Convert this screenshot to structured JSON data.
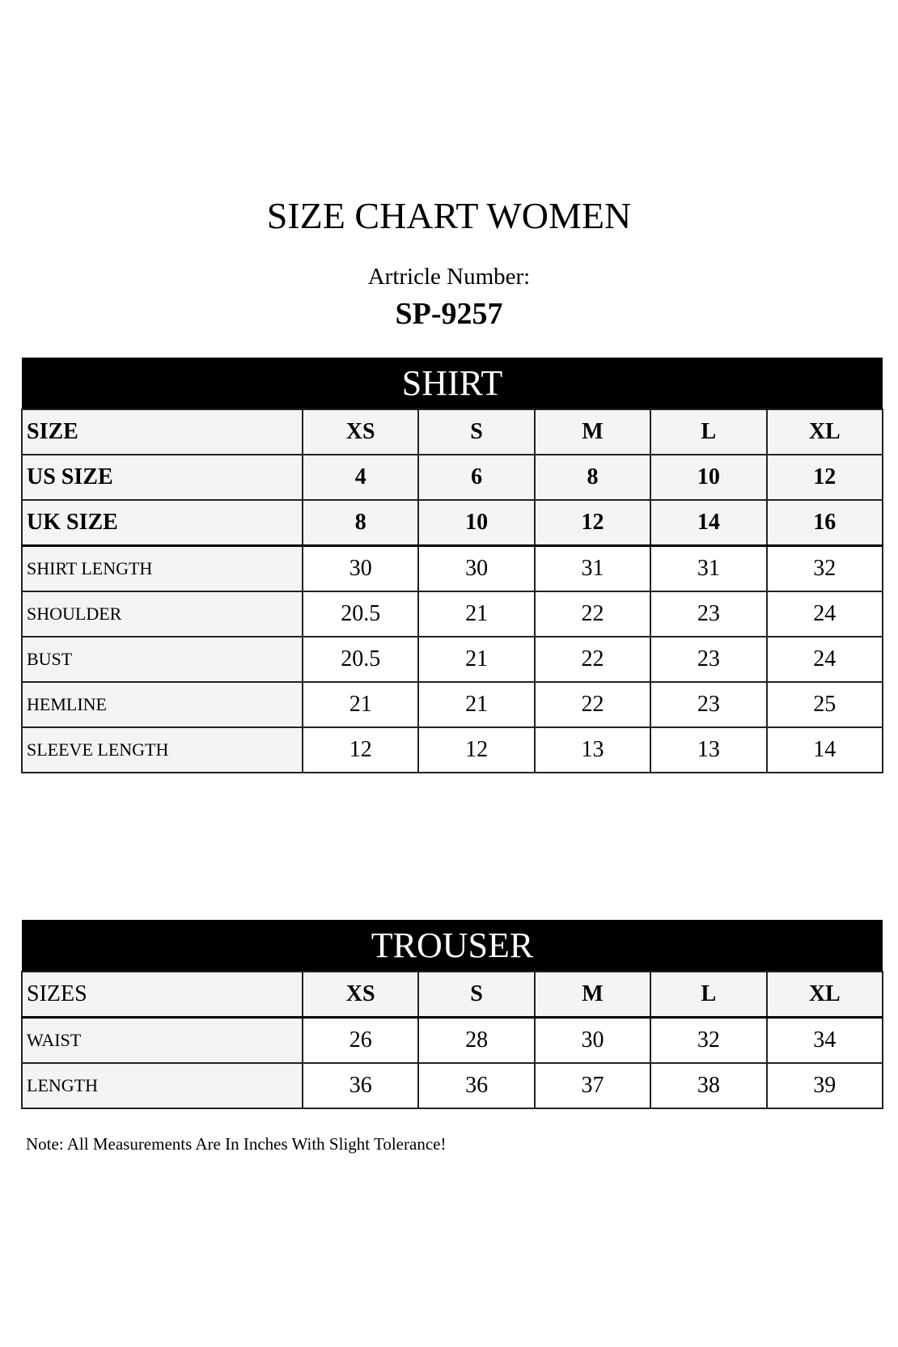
{
  "header": {
    "title": "SIZE CHART WOMEN",
    "article_label": "Artricle Number:",
    "article_number": "SP-9257"
  },
  "shirt": {
    "title": "SHIRT",
    "size_rows": [
      {
        "label": "SIZE",
        "values": [
          "XS",
          "S",
          "M",
          "L",
          "XL"
        ]
      },
      {
        "label": "US SIZE",
        "values": [
          "4",
          "6",
          "8",
          "10",
          "12"
        ]
      },
      {
        "label": "UK SIZE",
        "values": [
          "8",
          "10",
          "12",
          "14",
          "16"
        ]
      }
    ],
    "measure_rows": [
      {
        "label": "SHIRT LENGTH",
        "values": [
          "30",
          "30",
          "31",
          "31",
          "32"
        ]
      },
      {
        "label": "SHOULDER",
        "values": [
          "20.5",
          "21",
          "22",
          "23",
          "24"
        ]
      },
      {
        "label": "BUST",
        "values": [
          "20.5",
          "21",
          "22",
          "23",
          "24"
        ]
      },
      {
        "label": "HEMLINE",
        "values": [
          "21",
          "21",
          "22",
          "23",
          "25"
        ]
      },
      {
        "label": "SLEEVE LENGTH",
        "values": [
          "12",
          "12",
          "13",
          "13",
          "14"
        ]
      }
    ]
  },
  "trouser": {
    "title": "TROUSER",
    "header": {
      "label": "SIZES",
      "values": [
        "XS",
        "S",
        "M",
        "L",
        "XL"
      ]
    },
    "measure_rows": [
      {
        "label": "WAIST",
        "values": [
          "26",
          "28",
          "30",
          "32",
          "34"
        ]
      },
      {
        "label": "LENGTH",
        "values": [
          "36",
          "36",
          "37",
          "38",
          "39"
        ]
      }
    ]
  },
  "note": "Note: All Measurements Are In Inches With Slight Tolerance!"
}
